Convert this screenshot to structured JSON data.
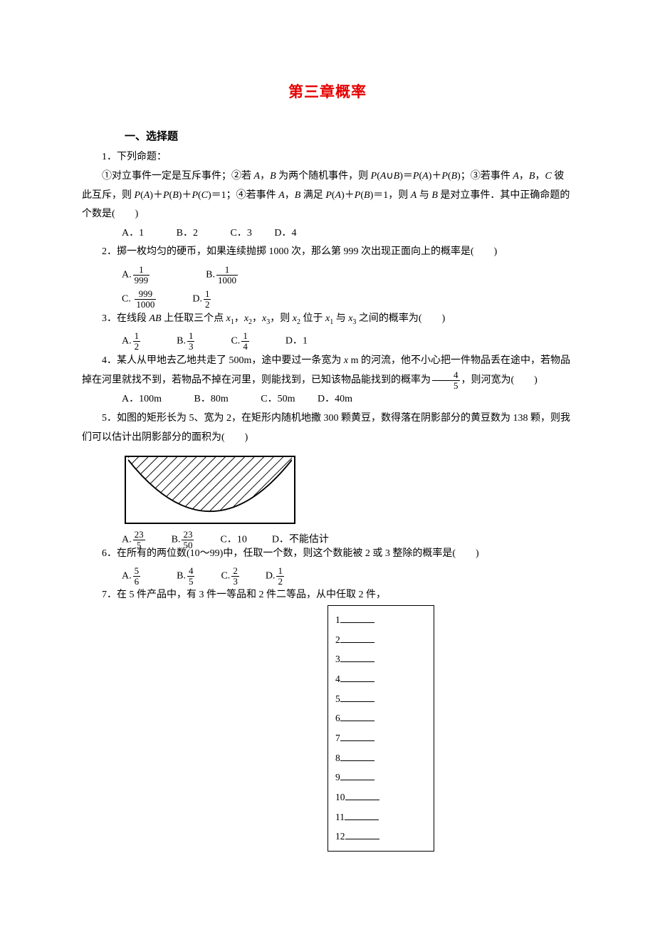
{
  "title": "第三章概率",
  "section_heading": "一、选择题",
  "q1": {
    "stem": "1．下列命题：",
    "cond_line": "①对立事件一定是互斥事件；②若 <span class=\"italic\">A</span>，<span class=\"italic\">B</span> 为两个随机事件，则 <span class=\"italic\">P</span>(<span class=\"italic\">A</span>∪<span class=\"italic\">B</span>)＝<span class=\"italic\">P</span>(<span class=\"italic\">A</span>)＋<span class=\"italic\">P</span>(<span class=\"italic\">B</span>)；③若事件 <span class=\"italic\">A</span>，<span class=\"italic\">B</span>，<span class=\"italic\">C</span> 彼此互斥，则 <span class=\"italic\">P</span>(<span class=\"italic\">A</span>)＋<span class=\"italic\">P</span>(<span class=\"italic\">B</span>)＋<span class=\"italic\">P</span>(<span class=\"italic\">C</span>)＝1；④若事件 <span class=\"italic\">A</span>，<span class=\"italic\">B</span> 满足 <span class=\"italic\">P</span>(<span class=\"italic\">A</span>)＋<span class=\"italic\">P</span>(<span class=\"italic\">B</span>)＝1，则 <span class=\"italic\">A</span> 与 <span class=\"italic\">B</span> 是对立事件．其中正确命题的个数是(　　)",
    "opts": {
      "A": "1",
      "B": "2",
      "C": "3",
      "D": "4"
    }
  },
  "q2": {
    "stem": "2．掷一枚均匀的硬币，如果连续抛掷 1000 次，那么第 999 次出现正面向上的概率是(　　)",
    "opts": {
      "A": {
        "num": "1",
        "den": "999"
      },
      "B": {
        "num": "1",
        "den": "1000"
      },
      "C": {
        "num": "999",
        "den": "1000"
      },
      "D": {
        "num": "1",
        "den": "2"
      }
    }
  },
  "q3": {
    "stem_prefix": "3．在线段 <span class=\"italic\">AB</span> 上任取三个点 <span class=\"italic\">x</span><span class=\"sub\">1</span>，<span class=\"italic\">x</span><span class=\"sub\">2</span>，<span class=\"italic\">x</span><span class=\"sub\">3</span>，则 <span class=\"italic\">x</span><span class=\"sub\">2</span> 位于 <span class=\"italic\">x</span><span class=\"sub\">1</span> 与 <span class=\"italic\">x</span><span class=\"sub\">3</span> 之间的概率为(　　)",
    "opts": {
      "A": {
        "num": "1",
        "den": "2"
      },
      "B": {
        "num": "1",
        "den": "3"
      },
      "C": {
        "num": "1",
        "den": "4"
      },
      "D": "1"
    }
  },
  "q4": {
    "stem_prefix": "4．某人从甲地去乙地共走了 500m，途中要过一条宽为 <span class=\"italic\">x</span> m 的河流，他不小心把一件物品丢在途中，若物品掉在河里就找不到，若物品不掉在河里，则能找到，已知该物品能找到的概率为",
    "stem_frac": {
      "num": "4",
      "den": "5"
    },
    "stem_suffix": "，则河宽为(　　)",
    "opts": {
      "A": "100m",
      "B": "80m",
      "C": "50m",
      "D": "40m"
    }
  },
  "q5": {
    "stem": "5．如图的矩形长为 5、宽为 2，在矩形内随机地撒 300 颗黄豆，数得落在阴影部分的黄豆数为 138 颗，则我们可以估计出阴影部分的面积为(　　)",
    "opts": {
      "A": {
        "num": "23",
        "den": "5"
      },
      "B": {
        "num": "23",
        "den": "50"
      },
      "C": "10",
      "D": "不能估计"
    }
  },
  "q6": {
    "stem": "6．在所有的两位数(10～99)中，任取一个数，则这个数能被 2 或 3 整除的概率是(　　)",
    "opts": {
      "A": {
        "num": "5",
        "den": "6"
      },
      "B": {
        "num": "4",
        "den": "5"
      },
      "C": {
        "num": "2",
        "den": "3"
      },
      "D": {
        "num": "1",
        "den": "2"
      }
    }
  },
  "q7": {
    "stem": "7．在 5 件产品中，有 3 件一等品和 2 件二等品，从中任取 2 件，"
  },
  "answer_box": {
    "rows": [
      "1",
      "2",
      "3",
      "4",
      "5",
      "6",
      "7",
      "8",
      "9",
      "10",
      "11",
      "12"
    ]
  },
  "figure": {
    "rect_border_color": "#000000",
    "hatch_color": "#000000",
    "background": "#ffffff"
  }
}
